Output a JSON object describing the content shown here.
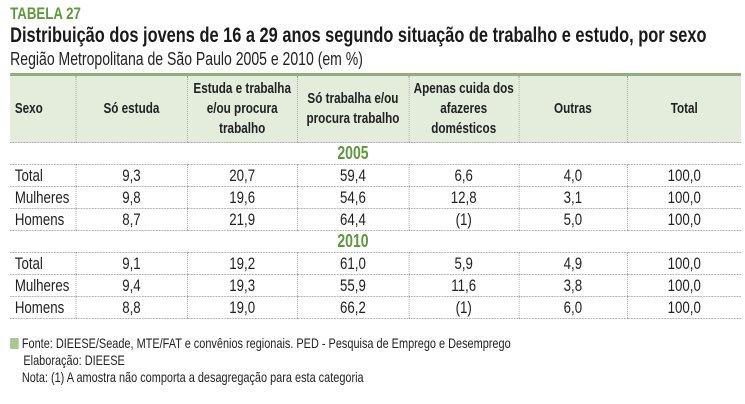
{
  "tag": "TABELA 27",
  "title": "Distribuição dos jovens de 16 a 29 anos segundo situação de trabalho e estudo, por sexo",
  "subtitle": "Região Metropolitana de São Paulo 2005 e 2010 (em %)",
  "headers": [
    "Sexo",
    "Só estuda",
    "Estuda e trabalha e/ou procura trabalho",
    "Só trabalha e/ou procura trabalho",
    "Apenas cuida dos afazeres domésticos",
    "Outras",
    "Total"
  ],
  "sections": [
    {
      "year": "2005",
      "rows": [
        [
          "Total",
          "9,3",
          "20,7",
          "59,4",
          "6,6",
          "4,0",
          "100,0"
        ],
        [
          "Mulheres",
          "9,8",
          "19,6",
          "54,6",
          "12,8",
          "3,1",
          "100,0"
        ],
        [
          "Homens",
          "8,7",
          "21,9",
          "64,4",
          "(1)",
          "5,0",
          "100,0"
        ]
      ]
    },
    {
      "year": "2010",
      "rows": [
        [
          "Total",
          "9,1",
          "19,2",
          "61,0",
          "5,9",
          "4,9",
          "100,0"
        ],
        [
          "Mulheres",
          "9,4",
          "19,3",
          "55,9",
          "11,6",
          "3,8",
          "100,0"
        ],
        [
          "Homens",
          "8,8",
          "19,0",
          "66,2",
          "(1)",
          "6,0",
          "100,0"
        ]
      ]
    }
  ],
  "footer": {
    "source": "Fonte: DIEESE/Seade, MTE/FAT e convênios regionais. PED - Pesquisa de Emprego e Desemprego",
    "elaboration": "Elaboração: DIEESE",
    "note": "Nota: (1) A amostra não comporta a desagregação para esta categoria"
  },
  "colors": {
    "accent": "#5e9a3c",
    "header_bg": "#e4ecdc"
  }
}
